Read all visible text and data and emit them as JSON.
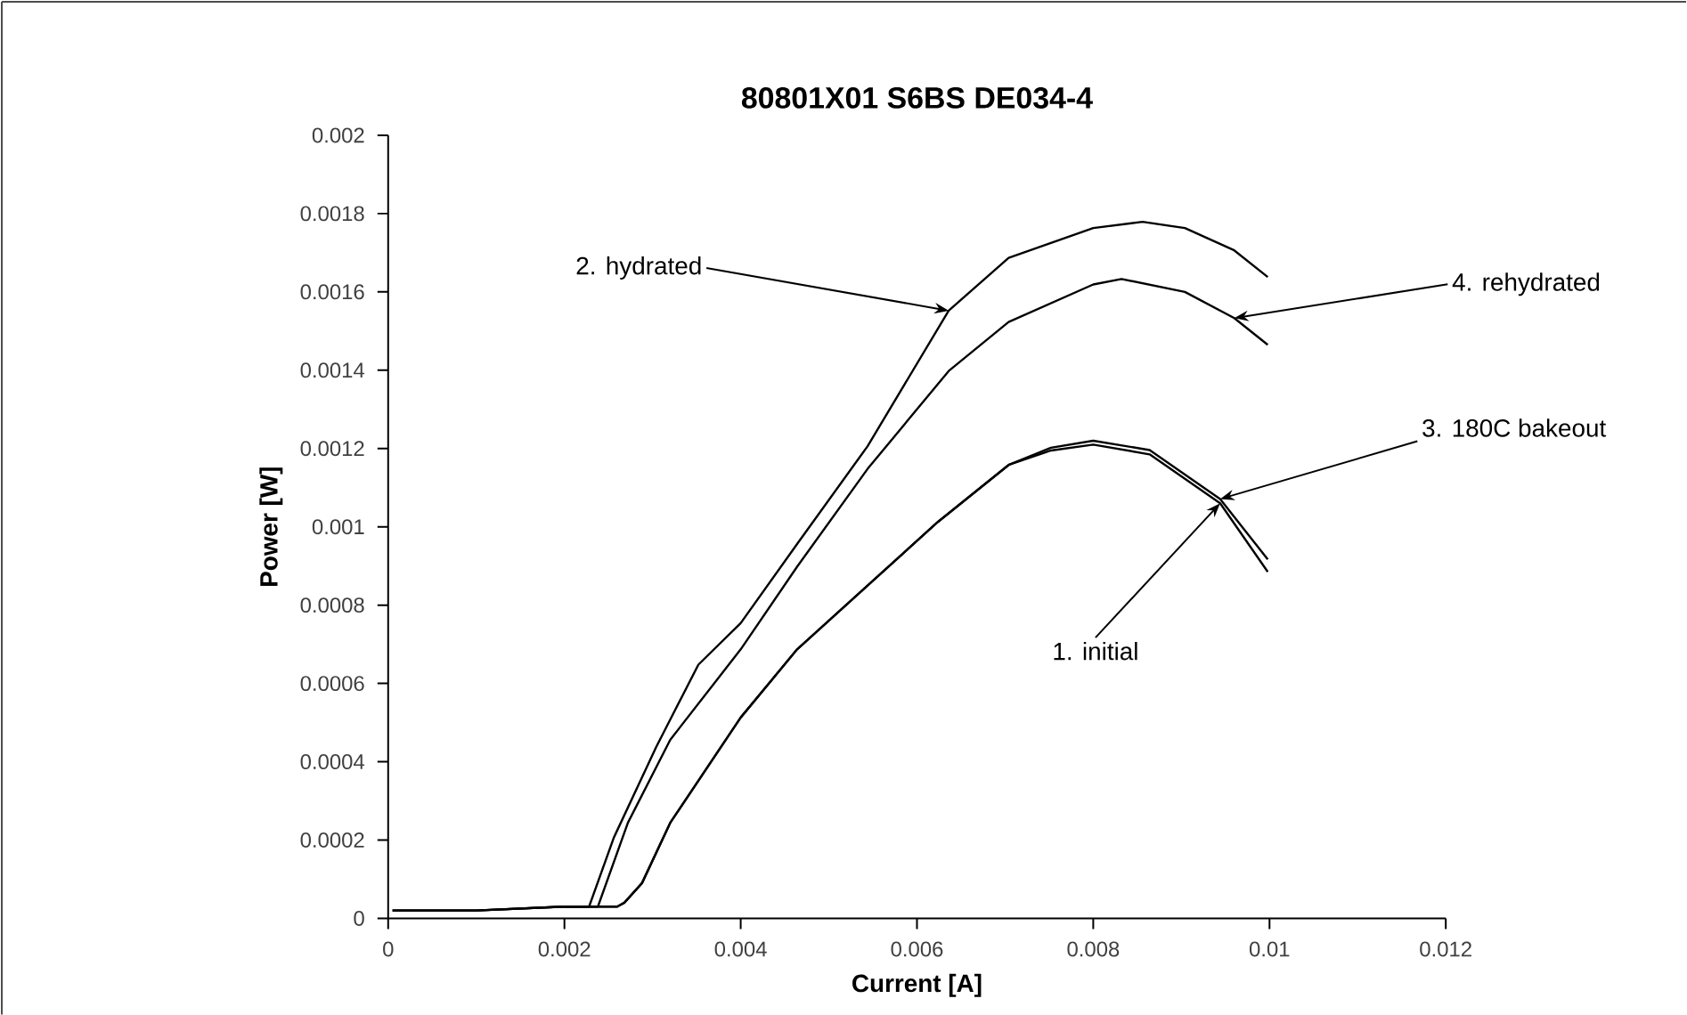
{
  "chart_data": {
    "type": "line",
    "title": "80801X01 S6BS DE034-4",
    "xlabel": "Current [A]",
    "ylabel": "Power [W]",
    "xlim": [
      0,
      0.012
    ],
    "xticks": [
      0,
      0.002,
      0.004,
      0.006,
      0.008,
      0.01,
      0.012
    ],
    "ylim": [
      0,
      0.002
    ],
    "yticks": [
      0,
      0.0002,
      0.0004,
      0.0006,
      0.0008,
      0.001,
      0.0012,
      0.0014,
      0.0016,
      0.0018,
      0.002
    ],
    "grid": false,
    "marker": "none",
    "line_style": "solid",
    "series": [
      {
        "color": "#000000",
        "x": [
          5e-05,
          0.001,
          0.002,
          0.0026,
          0.00268,
          0.00288,
          0.0032,
          0.004,
          0.00464,
          0.00544,
          0.00624,
          0.00704,
          0.00752,
          0.008,
          0.00864,
          0.00944,
          0.00998
        ],
        "values": [
          2e-05,
          2e-05,
          3e-05,
          3e-05,
          4e-05,
          9e-05,
          0.000244,
          0.000513,
          0.000687,
          0.00085,
          0.001013,
          0.001158,
          0.001195,
          0.00121,
          0.001185,
          0.00106,
          0.000885
        ]
      },
      {
        "color": "#000000",
        "x": [
          5e-05,
          0.001,
          0.002,
          0.00228,
          0.00256,
          0.00304,
          0.00352,
          0.004,
          0.00464,
          0.00544,
          0.00636,
          0.00704,
          0.008,
          0.00856,
          0.00904,
          0.0096,
          0.00998
        ],
        "values": [
          2e-05,
          2e-05,
          3e-05,
          3e-05,
          0.000206,
          0.000437,
          0.000648,
          0.000754,
          0.000956,
          0.001206,
          0.001552,
          0.001687,
          0.001763,
          0.001779,
          0.001763,
          0.001706,
          0.001638
        ]
      },
      {
        "color": "#000000",
        "x": [
          5e-05,
          0.001,
          0.002,
          0.0026,
          0.00268,
          0.00288,
          0.0032,
          0.004,
          0.00464,
          0.00544,
          0.00624,
          0.00704,
          0.00752,
          0.008,
          0.00864,
          0.00944,
          0.00998
        ],
        "values": [
          2e-05,
          2e-05,
          3e-05,
          3e-05,
          4e-05,
          9e-05,
          0.000244,
          0.000513,
          0.000687,
          0.00085,
          0.001013,
          0.001158,
          0.001202,
          0.00122,
          0.001196,
          0.001071,
          0.000917
        ]
      },
      {
        "color": "#000000",
        "x": [
          0.002,
          0.00238,
          0.00272,
          0.0032,
          0.004,
          0.00464,
          0.00544,
          0.00636,
          0.00704,
          0.008,
          0.00832,
          0.00904,
          0.0096,
          0.00998
        ],
        "values": [
          3e-05,
          3e-05,
          0.000244,
          0.000456,
          0.000687,
          0.000898,
          0.001148,
          0.001398,
          0.001523,
          0.001619,
          0.001633,
          0.0016,
          0.001533,
          0.001465
        ]
      }
    ],
    "annotations": [
      {
        "text": "1. initial",
        "x": 0.00944,
        "y": 0.00106
      },
      {
        "text": "2. hydrated",
        "x": 0.00636,
        "y": 0.001552
      },
      {
        "text": "3. 180C bakeout",
        "x": 0.00944,
        "y": 0.001071
      },
      {
        "text": "4. rehydrated",
        "x": 0.0096,
        "y": 0.001533
      }
    ]
  }
}
